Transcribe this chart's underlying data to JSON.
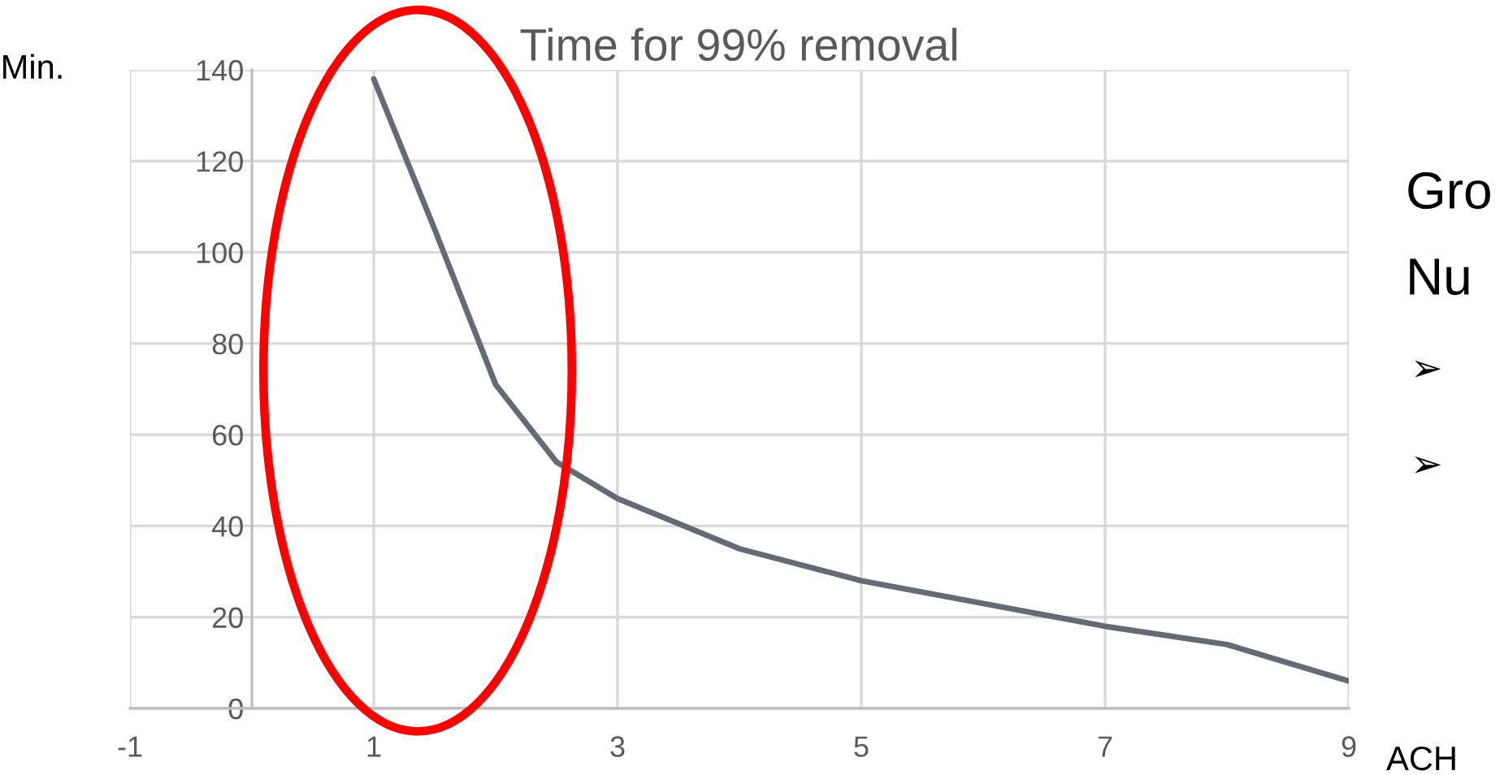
{
  "chart_data": {
    "type": "line",
    "title": "Time for 99% removal",
    "xlabel": "ACH",
    "ylabel": "Min.",
    "x": [
      1,
      1.5,
      2,
      2.5,
      3,
      4,
      5,
      6,
      7,
      8,
      9
    ],
    "series": [
      {
        "color": "#646b74",
        "values": [
          138,
          105,
          71,
          54,
          46,
          35,
          28,
          23,
          18,
          14,
          6
        ]
      }
    ],
    "xlim": [
      -1,
      9
    ],
    "xticks": [
      -1,
      1,
      3,
      5,
      7,
      9
    ],
    "ylim": [
      0,
      140
    ],
    "yticks": [
      0,
      20,
      40,
      60,
      80,
      100,
      120,
      140
    ],
    "grid": true,
    "legend": false,
    "marker": "none",
    "line_style": "solid",
    "annotations": [
      "Gro",
      "Nu",
      "➢",
      "➢"
    ]
  }
}
